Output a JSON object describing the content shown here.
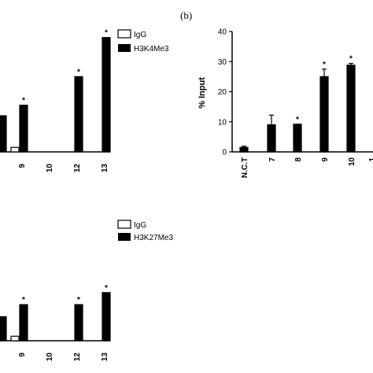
{
  "panel_label_b": "(b)",
  "chart_data": [
    {
      "id": "a-top",
      "type": "bar",
      "categories": [
        "",
        "9",
        "10",
        "12",
        "13"
      ],
      "series": [
        {
          "name": "IgG",
          "values": [
            null,
            1.5,
            0,
            0,
            0
          ]
        },
        {
          "name": "H3K4Me3",
          "values": [
            12,
            15.5,
            0,
            25,
            38
          ]
        }
      ],
      "significance": [
        "",
        "*",
        "",
        "*",
        "*"
      ],
      "legend": [
        "IgG",
        "H3K4Me3"
      ],
      "legend_position": "top-right",
      "ylim": [
        0,
        40
      ],
      "grid": false
    },
    {
      "id": "b",
      "type": "bar",
      "categories": [
        "N.C.T",
        "7",
        "8",
        "9",
        "10",
        "1"
      ],
      "series": [
        {
          "name": "",
          "values": [
            1.5,
            9,
            9.2,
            25,
            28.8,
            null
          ],
          "errors": [
            0.4,
            3.2,
            0,
            2.5,
            0.6,
            0
          ]
        }
      ],
      "significance": [
        "",
        "",
        "*",
        "*",
        "*",
        ""
      ],
      "ylabel": "% Input",
      "yticks": [
        "0",
        "10",
        "20",
        "30",
        "40"
      ],
      "ylim": [
        0,
        40
      ],
      "grid": false
    },
    {
      "id": "c-bottom",
      "type": "bar",
      "categories": [
        "",
        "9",
        "10",
        "12",
        "13"
      ],
      "series": [
        {
          "name": "IgG",
          "values": [
            null,
            1.5,
            0,
            0,
            0
          ]
        },
        {
          "name": "H3K27Me3",
          "values": [
            8,
            12,
            0,
            12,
            16
          ]
        }
      ],
      "significance": [
        "",
        "*",
        "",
        "*",
        "*"
      ],
      "legend": [
        "IgG",
        "H3K27Me3"
      ],
      "legend_position": "top-right",
      "ylim": [
        0,
        40
      ],
      "grid": false
    }
  ]
}
